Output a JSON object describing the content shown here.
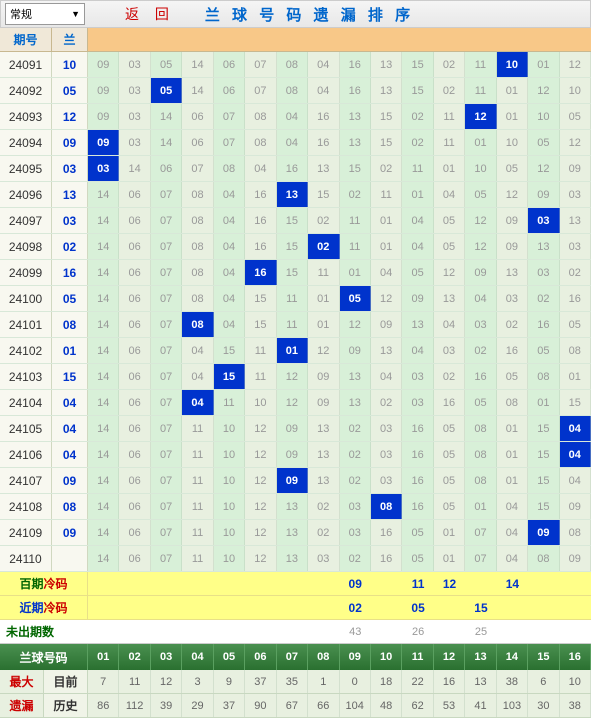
{
  "dropdown": {
    "label": "常规"
  },
  "returnBtn": "返 回",
  "title": "兰 球 号 码 遗 漏 排 序",
  "headers": {
    "period": "期号",
    "blue": "兰"
  },
  "rows": [
    {
      "period": "24091",
      "blue": "10",
      "cells": [
        "09",
        "03",
        "05",
        "14",
        "06",
        "07",
        "08",
        "04",
        "16",
        "13",
        "15",
        "02",
        "11",
        "10",
        "01",
        "12"
      ],
      "hit": 13
    },
    {
      "period": "24092",
      "blue": "05",
      "cells": [
        "09",
        "03",
        "05",
        "14",
        "06",
        "07",
        "08",
        "04",
        "16",
        "13",
        "15",
        "02",
        "11",
        "01",
        "12",
        "10"
      ],
      "hit": 2
    },
    {
      "period": "24093",
      "blue": "12",
      "cells": [
        "09",
        "03",
        "14",
        "06",
        "07",
        "08",
        "04",
        "16",
        "13",
        "15",
        "02",
        "11",
        "12",
        "01",
        "10",
        "05"
      ],
      "hit": 12
    },
    {
      "period": "24094",
      "blue": "09",
      "cells": [
        "09",
        "03",
        "14",
        "06",
        "07",
        "08",
        "04",
        "16",
        "13",
        "15",
        "02",
        "11",
        "01",
        "10",
        "05",
        "12"
      ],
      "hit": 0
    },
    {
      "period": "24095",
      "blue": "03",
      "cells": [
        "03",
        "14",
        "06",
        "07",
        "08",
        "04",
        "16",
        "13",
        "15",
        "02",
        "11",
        "01",
        "10",
        "05",
        "12",
        "09"
      ],
      "hit": 0
    },
    {
      "period": "24096",
      "blue": "13",
      "cells": [
        "14",
        "06",
        "07",
        "08",
        "04",
        "16",
        "13",
        "15",
        "02",
        "11",
        "01",
        "04",
        "05",
        "12",
        "09",
        "03"
      ],
      "hit": 6
    },
    {
      "period": "24097",
      "blue": "03",
      "cells": [
        "14",
        "06",
        "07",
        "08",
        "04",
        "16",
        "15",
        "02",
        "11",
        "01",
        "04",
        "05",
        "12",
        "09",
        "03",
        "13"
      ],
      "hit": 14
    },
    {
      "period": "24098",
      "blue": "02",
      "cells": [
        "14",
        "06",
        "07",
        "08",
        "04",
        "16",
        "15",
        "02",
        "11",
        "01",
        "04",
        "05",
        "12",
        "09",
        "13",
        "03"
      ],
      "hit": 7
    },
    {
      "period": "24099",
      "blue": "16",
      "cells": [
        "14",
        "06",
        "07",
        "08",
        "04",
        "16",
        "15",
        "11",
        "01",
        "04",
        "05",
        "12",
        "09",
        "13",
        "03",
        "02"
      ],
      "hit": 5
    },
    {
      "period": "24100",
      "blue": "05",
      "cells": [
        "14",
        "06",
        "07",
        "08",
        "04",
        "15",
        "11",
        "01",
        "05",
        "12",
        "09",
        "13",
        "04",
        "03",
        "02",
        "16"
      ],
      "hit": 8
    },
    {
      "period": "24101",
      "blue": "08",
      "cells": [
        "14",
        "06",
        "07",
        "08",
        "04",
        "15",
        "11",
        "01",
        "12",
        "09",
        "13",
        "04",
        "03",
        "02",
        "16",
        "05"
      ],
      "hit": 3
    },
    {
      "period": "24102",
      "blue": "01",
      "cells": [
        "14",
        "06",
        "07",
        "04",
        "15",
        "11",
        "01",
        "12",
        "09",
        "13",
        "04",
        "03",
        "02",
        "16",
        "05",
        "08"
      ],
      "hit": 6
    },
    {
      "period": "24103",
      "blue": "15",
      "cells": [
        "14",
        "06",
        "07",
        "04",
        "15",
        "11",
        "12",
        "09",
        "13",
        "04",
        "03",
        "02",
        "16",
        "05",
        "08",
        "01"
      ],
      "hit": 4
    },
    {
      "period": "24104",
      "blue": "04",
      "cells": [
        "14",
        "06",
        "07",
        "04",
        "11",
        "10",
        "12",
        "09",
        "13",
        "02",
        "03",
        "16",
        "05",
        "08",
        "01",
        "15"
      ],
      "hit": 3
    },
    {
      "period": "24105",
      "blue": "04",
      "cells": [
        "14",
        "06",
        "07",
        "11",
        "10",
        "12",
        "09",
        "13",
        "02",
        "03",
        "16",
        "05",
        "08",
        "01",
        "15",
        "04"
      ],
      "hit": 15
    },
    {
      "period": "24106",
      "blue": "04",
      "cells": [
        "14",
        "06",
        "07",
        "11",
        "10",
        "12",
        "09",
        "13",
        "02",
        "03",
        "16",
        "05",
        "08",
        "01",
        "15",
        "04"
      ],
      "hit": 15
    },
    {
      "period": "24107",
      "blue": "09",
      "cells": [
        "14",
        "06",
        "07",
        "11",
        "10",
        "12",
        "09",
        "13",
        "02",
        "03",
        "16",
        "05",
        "08",
        "01",
        "15",
        "04"
      ],
      "hit": 6
    },
    {
      "period": "24108",
      "blue": "08",
      "cells": [
        "14",
        "06",
        "07",
        "11",
        "10",
        "12",
        "13",
        "02",
        "03",
        "08",
        "16",
        "05",
        "01",
        "04",
        "15",
        "09"
      ],
      "hit": 9
    },
    {
      "period": "24109",
      "blue": "09",
      "cells": [
        "14",
        "06",
        "07",
        "11",
        "10",
        "12",
        "13",
        "02",
        "03",
        "16",
        "05",
        "01",
        "07",
        "04",
        "09",
        "08"
      ],
      "hit": 14
    },
    {
      "period": "24110",
      "blue": "",
      "cells": [
        "14",
        "06",
        "07",
        "11",
        "10",
        "12",
        "13",
        "03",
        "02",
        "16",
        "05",
        "01",
        "07",
        "04",
        "08",
        "09"
      ],
      "hit": -1
    }
  ],
  "coldRows": [
    {
      "l1": "百期",
      "l2": "冷码",
      "values": [
        "",
        "",
        "",
        "",
        "",
        "",
        "",
        "",
        "09",
        "",
        "11",
        "12",
        "",
        "14",
        "",
        ""
      ]
    },
    {
      "l1": "近期",
      "l2": "冷码",
      "values": [
        "",
        "",
        "",
        "",
        "",
        "",
        "",
        "",
        "02",
        "",
        "05",
        "",
        "15",
        "",
        "",
        ""
      ]
    }
  ],
  "unissued": {
    "label": "未出期数",
    "values": [
      "",
      "",
      "",
      "",
      "",
      "",
      "",
      "",
      "43",
      "",
      "26",
      "",
      "25",
      "",
      "",
      ""
    ]
  },
  "numHeader": {
    "label": "兰球号码",
    "cells": [
      "01",
      "02",
      "03",
      "04",
      "05",
      "06",
      "07",
      "08",
      "09",
      "10",
      "11",
      "12",
      "13",
      "14",
      "15",
      "16"
    ]
  },
  "maxMiss": {
    "leftLabel": "最大",
    "sub": "遗漏",
    "rows": [
      {
        "label": "目前",
        "values": [
          "7",
          "11",
          "12",
          "3",
          "9",
          "37",
          "35",
          "1",
          "0",
          "18",
          "22",
          "16",
          "13",
          "38",
          "6",
          "10"
        ]
      },
      {
        "label": "历史",
        "values": [
          "86",
          "112",
          "39",
          "29",
          "37",
          "90",
          "67",
          "66",
          "104",
          "48",
          "62",
          "53",
          "41",
          "103",
          "30",
          "38"
        ]
      }
    ]
  },
  "style": {
    "hitBg": "#0033cc",
    "hitFg": "#ffffff",
    "oddBg": "#d8f0d8",
    "evenBg": "#e8f0e0",
    "missFg": "#999999",
    "blueFg": "#0033cc",
    "coldBg": "#ffff88",
    "greenHeaderBg": "#3a8040"
  }
}
